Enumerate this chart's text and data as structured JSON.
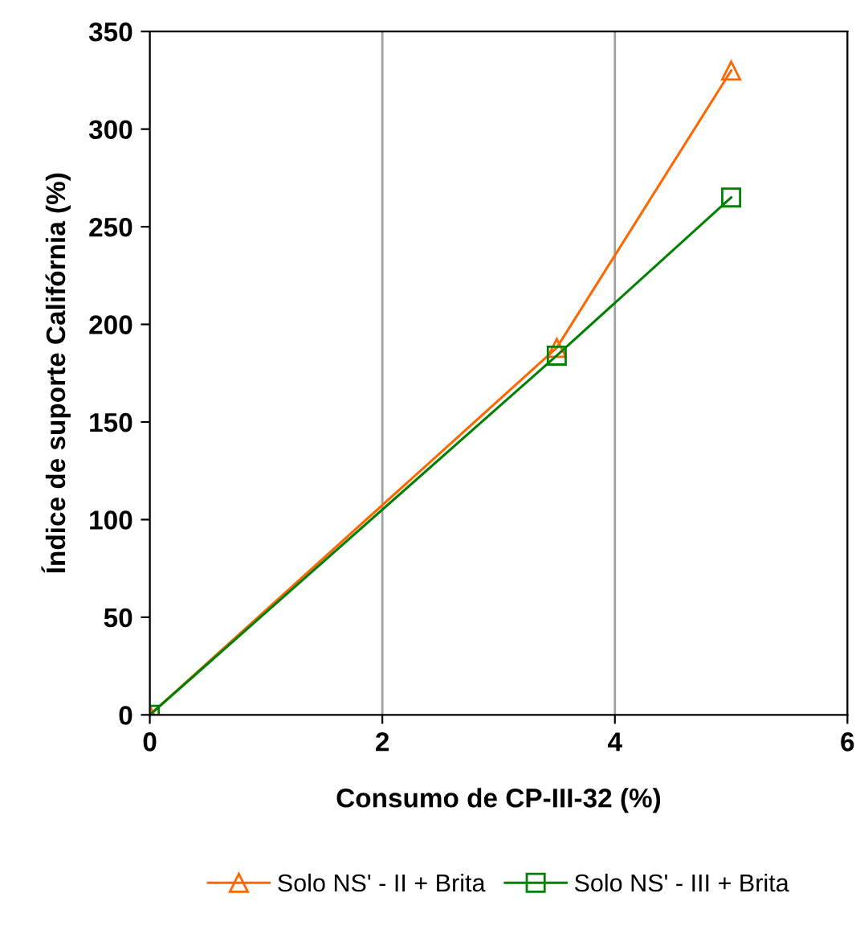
{
  "chart_data": {
    "type": "line",
    "xlabel": "Consumo de CP-III-32 (%)",
    "ylabel": "Índice de suporte Califórnia (%)",
    "xlim": [
      0,
      6
    ],
    "xticks": [
      0,
      2,
      4,
      6
    ],
    "ylim": [
      0,
      350
    ],
    "yticks": [
      0,
      50,
      100,
      150,
      200,
      250,
      300,
      350
    ],
    "grid": "x",
    "legend": "bottom",
    "series": [
      {
        "name": "Solo NS' - II + Brita",
        "color": "#ff6600",
        "marker": "triangle",
        "x": [
          0,
          3.5,
          5
        ],
        "values": [
          0,
          188,
          330
        ]
      },
      {
        "name": "Solo NS' - III + Brita",
        "color": "#008000",
        "marker": "square",
        "x": [
          0,
          3.5,
          5
        ],
        "values": [
          0,
          184,
          265
        ]
      }
    ]
  }
}
